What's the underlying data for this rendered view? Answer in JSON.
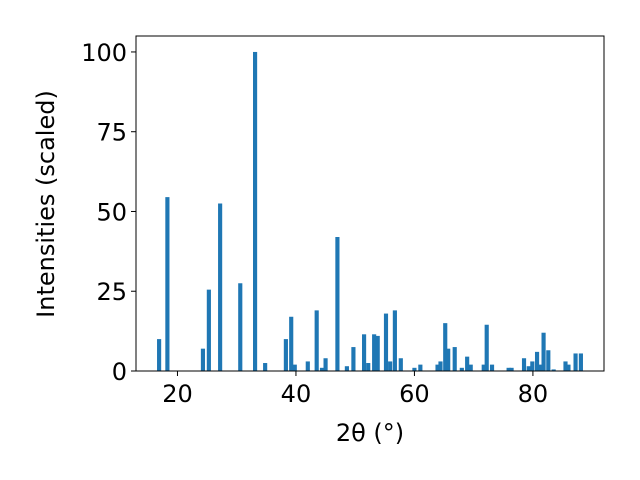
{
  "chart_data": {
    "type": "bar",
    "xlabel": "2θ (°)",
    "ylabel": "Intensities (scaled)",
    "xlim": [
      13.0,
      92.0
    ],
    "ylim": [
      0,
      105
    ],
    "xticks": [
      20,
      40,
      60,
      80
    ],
    "yticks": [
      0,
      25,
      50,
      75,
      100
    ],
    "bar_color": "#1f77b4",
    "bar_width": 0.7,
    "grid": false,
    "x": [
      16.9,
      18.3,
      24.3,
      25.3,
      27.2,
      30.6,
      33.1,
      34.8,
      38.3,
      39.2,
      39.8,
      42.0,
      43.5,
      44.4,
      45.0,
      47.0,
      48.6,
      49.7,
      51.5,
      52.2,
      53.2,
      53.8,
      55.2,
      55.9,
      56.7,
      57.7,
      60.0,
      61.0,
      63.9,
      64.4,
      65.2,
      65.7,
      66.8,
      68.0,
      68.9,
      69.5,
      71.7,
      72.2,
      73.1,
      75.9,
      76.4,
      78.5,
      79.3,
      79.9,
      80.7,
      81.3,
      81.8,
      82.6,
      83.5,
      85.5,
      86.0,
      87.2,
      88.1
    ],
    "values": [
      10,
      54.5,
      7,
      25.5,
      52.5,
      27.5,
      100,
      2.5,
      10,
      17,
      2,
      3,
      19,
      1,
      4,
      42,
      1.5,
      7.5,
      11.5,
      2.5,
      11.5,
      11,
      18,
      3,
      19,
      4,
      1,
      2,
      2,
      3,
      15,
      7,
      7.5,
      1,
      4.5,
      2,
      2,
      14.5,
      2,
      1,
      1,
      4,
      1.5,
      3,
      6,
      2,
      12,
      6.5,
      0.5,
      3,
      2,
      5.5,
      5.5
    ]
  }
}
